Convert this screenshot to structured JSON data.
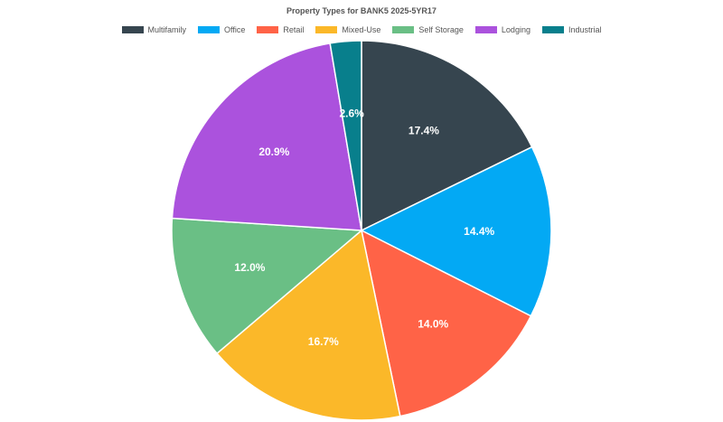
{
  "chart_data": {
    "type": "pie",
    "title": "Property Types for BANK5 2025-5YR17",
    "legend_position": "top",
    "slices": [
      {
        "name": "Multifamily",
        "value": 17.4,
        "label": "17.4%",
        "color": "#36454f"
      },
      {
        "name": "Office",
        "value": 14.4,
        "label": "14.4%",
        "color": "#03a9f4"
      },
      {
        "name": "Retail",
        "value": 14.0,
        "label": "14.0%",
        "color": "#ff6347"
      },
      {
        "name": "Mixed-Use",
        "value": 16.7,
        "label": "16.7%",
        "color": "#fbb829"
      },
      {
        "name": "Self Storage",
        "value": 12.0,
        "label": "12.0%",
        "color": "#6abf85"
      },
      {
        "name": "Lodging",
        "value": 20.9,
        "label": "20.9%",
        "color": "#ab52dd"
      },
      {
        "name": "Industrial",
        "value": 2.6,
        "label": "2.6%",
        "color": "#087f8c"
      }
    ]
  }
}
